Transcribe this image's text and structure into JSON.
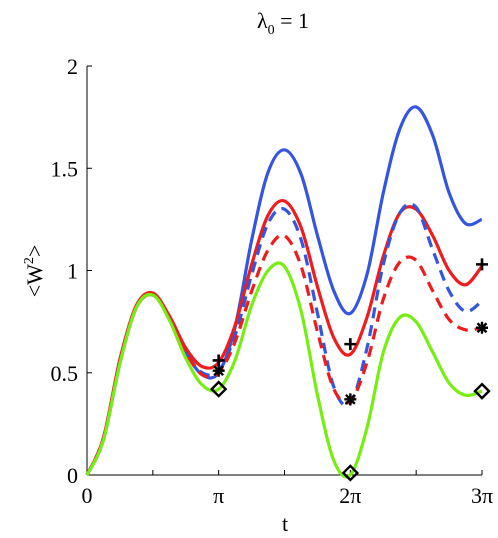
{
  "chart_data": {
    "type": "line",
    "title": {
      "main": "λ",
      "subscript": "0",
      "rest": " = 1"
    },
    "xlabel": "t",
    "ylabel": {
      "main": "<W",
      "superscript": "2",
      "rest": ">"
    },
    "xlim": [
      0,
      9.4248
    ],
    "ylim": [
      0,
      2
    ],
    "x_ticks": [
      {
        "value": 0,
        "label": "0"
      },
      {
        "value": 3.1416,
        "label": "π"
      },
      {
        "value": 6.2832,
        "label": "2π"
      },
      {
        "value": 9.4248,
        "label": "3π"
      }
    ],
    "y_ticks": [
      {
        "value": 0,
        "label": "0"
      },
      {
        "value": 0.5,
        "label": "0.5"
      },
      {
        "value": 1,
        "label": "1"
      },
      {
        "value": 1.5,
        "label": "1.5"
      },
      {
        "value": 2,
        "label": "2"
      }
    ],
    "grid": false,
    "colors": {
      "blue": "#3355e0",
      "red": "#ee1c1c",
      "green": "#77ee11",
      "marker": "#000000"
    },
    "series": [
      {
        "color": "blue",
        "style": "solid",
        "x": [
          0,
          0.39,
          0.79,
          1.18,
          1.57,
          1.96,
          2.36,
          2.75,
          3.14,
          3.53,
          3.93,
          4.32,
          4.71,
          5.11,
          5.5,
          5.89,
          6.28,
          6.68,
          7.07,
          7.46,
          7.85,
          8.25,
          8.64,
          9.03,
          9.42
        ],
        "y": [
          0,
          0.17,
          0.55,
          0.82,
          0.88,
          0.77,
          0.6,
          0.49,
          0.5,
          0.72,
          1.15,
          1.48,
          1.59,
          1.47,
          1.17,
          0.9,
          0.79,
          0.98,
          1.38,
          1.69,
          1.8,
          1.66,
          1.38,
          1.23,
          1.25
        ]
      },
      {
        "color": "red",
        "style": "solid",
        "x": [
          0,
          0.39,
          0.79,
          1.18,
          1.57,
          1.96,
          2.36,
          2.75,
          3.14,
          3.53,
          3.93,
          4.32,
          4.71,
          5.11,
          5.5,
          5.89,
          6.28,
          6.68,
          7.07,
          7.46,
          7.85,
          8.25,
          8.64,
          9.03,
          9.42
        ],
        "y": [
          0,
          0.18,
          0.57,
          0.83,
          0.89,
          0.78,
          0.62,
          0.53,
          0.55,
          0.73,
          1.03,
          1.27,
          1.34,
          1.21,
          0.92,
          0.67,
          0.59,
          0.77,
          1.07,
          1.28,
          1.3,
          1.17,
          1.0,
          0.93,
          1.02
        ]
      },
      {
        "color": "blue",
        "style": "dashed",
        "x": [
          0,
          0.39,
          0.79,
          1.18,
          1.57,
          1.96,
          2.36,
          2.75,
          3.14,
          3.53,
          3.93,
          4.32,
          4.71,
          5.11,
          5.5,
          5.89,
          6.28,
          6.68,
          7.07,
          7.46,
          7.85,
          8.25,
          8.64,
          9.03,
          9.42
        ],
        "y": [
          0,
          0.18,
          0.56,
          0.82,
          0.88,
          0.77,
          0.6,
          0.5,
          0.51,
          0.68,
          0.98,
          1.23,
          1.3,
          1.15,
          0.79,
          0.43,
          0.35,
          0.62,
          1.03,
          1.28,
          1.31,
          1.1,
          0.9,
          0.8,
          0.85
        ]
      },
      {
        "color": "red",
        "style": "dashed",
        "x": [
          0,
          0.39,
          0.79,
          1.18,
          1.57,
          1.96,
          2.36,
          2.75,
          3.14,
          3.53,
          3.93,
          4.32,
          4.71,
          5.11,
          5.5,
          5.89,
          6.28,
          6.68,
          7.07,
          7.46,
          7.85,
          8.25,
          8.64,
          9.03,
          9.42
        ],
        "y": [
          0,
          0.18,
          0.56,
          0.82,
          0.88,
          0.77,
          0.6,
          0.49,
          0.5,
          0.65,
          0.9,
          1.1,
          1.17,
          1.02,
          0.7,
          0.42,
          0.36,
          0.55,
          0.86,
          1.04,
          1.05,
          0.9,
          0.76,
          0.71,
          0.72
        ]
      },
      {
        "color": "green",
        "style": "solid",
        "x": [
          0,
          0.39,
          0.79,
          1.18,
          1.57,
          1.96,
          2.36,
          2.75,
          3.14,
          3.53,
          3.93,
          4.32,
          4.71,
          5.11,
          5.5,
          5.89,
          6.28,
          6.68,
          7.07,
          7.46,
          7.85,
          8.25,
          8.64,
          9.03,
          9.42
        ],
        "y": [
          0,
          0.17,
          0.55,
          0.82,
          0.88,
          0.76,
          0.57,
          0.44,
          0.42,
          0.56,
          0.83,
          1.0,
          1.02,
          0.8,
          0.39,
          0.07,
          0.0,
          0.23,
          0.6,
          0.77,
          0.75,
          0.6,
          0.45,
          0.39,
          0.41
        ]
      }
    ],
    "markers": [
      {
        "shape": "plus",
        "points": [
          [
            3.1416,
            0.56
          ],
          [
            6.2832,
            0.64
          ],
          [
            9.4248,
            1.03
          ]
        ]
      },
      {
        "shape": "asterisk",
        "points": [
          [
            3.1416,
            0.51
          ],
          [
            6.2832,
            0.37
          ],
          [
            9.4248,
            0.72
          ]
        ]
      },
      {
        "shape": "diamond",
        "points": [
          [
            3.1416,
            0.42
          ],
          [
            6.2832,
            0.01
          ],
          [
            9.4248,
            0.41
          ]
        ]
      }
    ]
  }
}
